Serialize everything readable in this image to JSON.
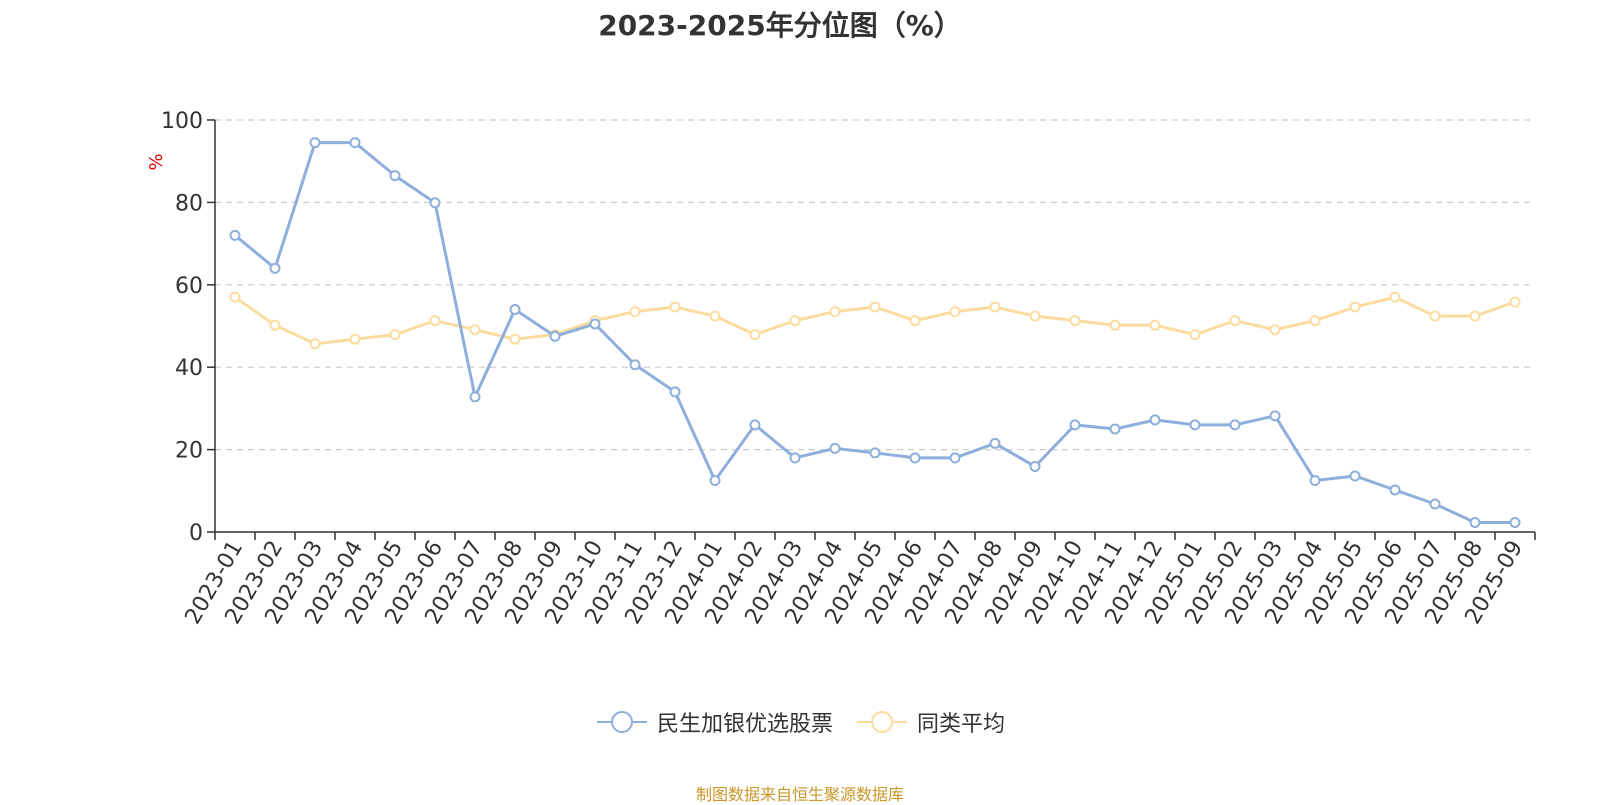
{
  "chart_data": {
    "type": "line",
    "title": "2023-2025年分位图（%）",
    "ylabel": "%",
    "xlabel": "",
    "ylim": [
      0,
      100
    ],
    "yticks": [
      0,
      20,
      40,
      60,
      80,
      100
    ],
    "grid": true,
    "legend_position": "bottom",
    "categories": [
      "2023-01",
      "2023-02",
      "2023-03",
      "2023-04",
      "2023-05",
      "2023-06",
      "2023-07",
      "2023-08",
      "2023-09",
      "2023-10",
      "2023-11",
      "2023-12",
      "2024-01",
      "2024-02",
      "2024-03",
      "2024-04",
      "2024-05",
      "2024-06",
      "2024-07",
      "2024-08",
      "2024-09",
      "2024-10",
      "2024-11",
      "2024-12",
      "2025-01",
      "2025-02",
      "2025-03",
      "2025-04",
      "2025-05",
      "2025-06",
      "2025-07",
      "2025-08",
      "2025-09"
    ],
    "series": [
      {
        "name": "民生加银优选股票",
        "color": "#8eaedb",
        "values": [
          72.0,
          64.0,
          94.5,
          94.5,
          86.5,
          79.9,
          32.8,
          54.0,
          47.5,
          50.5,
          40.6,
          34.0,
          12.5,
          26.0,
          18.0,
          20.3,
          19.2,
          18.0,
          18.0,
          21.5,
          15.9,
          26.0,
          25.0,
          27.2,
          26.0,
          26.0,
          28.2,
          12.5,
          13.6,
          10.2,
          6.8,
          2.3,
          2.3
        ]
      },
      {
        "name": "同类平均",
        "color": "#fbdc9e",
        "values": [
          57.0,
          50.2,
          45.7,
          46.8,
          47.9,
          51.3,
          49.1,
          46.8,
          47.9,
          51.3,
          53.5,
          54.6,
          52.4,
          47.9,
          51.3,
          53.5,
          54.6,
          51.3,
          53.5,
          54.6,
          52.4,
          51.3,
          50.2,
          50.2,
          47.9,
          51.3,
          49.1,
          51.3,
          54.6,
          57.0,
          52.4,
          52.4,
          55.8
        ]
      }
    ]
  },
  "source": "制图数据来自恒生聚源数据库"
}
